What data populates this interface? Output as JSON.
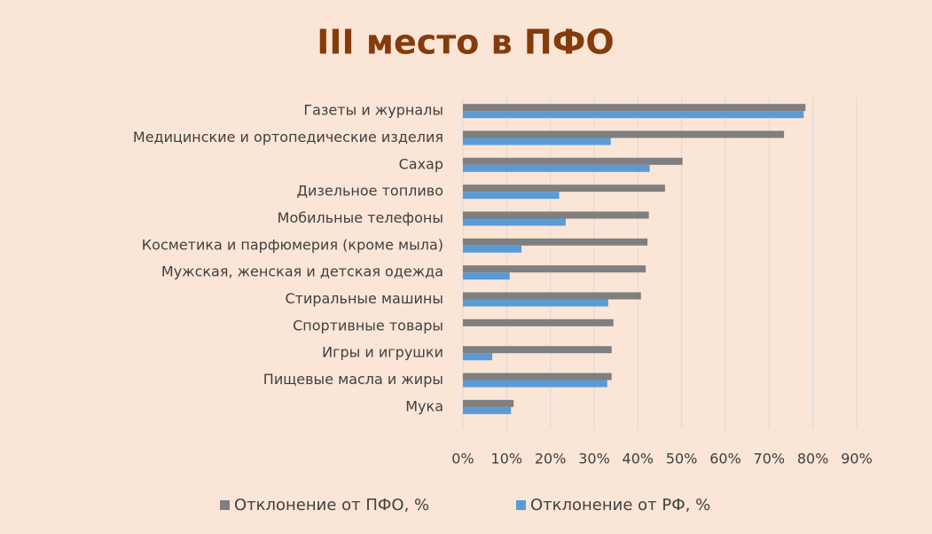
{
  "chart_data": {
    "type": "bar",
    "orientation": "horizontal",
    "title": "III место в ПФО",
    "categories": [
      "Газеты и журналы",
      "Медицинские и ортопедические изделия",
      "Сахар",
      "Дизельное топливо",
      "Мобильные телефоны",
      "Косметика и парфюмерия (кроме мыла)",
      "Мужская, женская и детская одежда",
      "Стиральные машины",
      "Спортивные товары",
      "Игры и игрушки",
      "Пищевые масла и жиры",
      "Мука"
    ],
    "series": [
      {
        "name": "Отклонение от ПФО, %",
        "color": "#7f7f7f",
        "values": [
          78.3,
          73.4,
          50.2,
          46.2,
          42.5,
          42.2,
          41.8,
          40.7,
          34.4,
          34,
          34,
          11.6
        ]
      },
      {
        "name": "Отклонение от РФ, %",
        "color": "#5b9bd5",
        "values": [
          77.9,
          33.8,
          42.7,
          22,
          23.5,
          13.4,
          10.7,
          33.2,
          null,
          6.7,
          33,
          11
        ]
      }
    ],
    "xlim": [
      0,
      90
    ],
    "xticks": [
      {
        "value": 0,
        "label": "0%"
      },
      {
        "value": 10,
        "label": "10%"
      },
      {
        "value": 20,
        "label": "20%"
      },
      {
        "value": 30,
        "label": "30%"
      },
      {
        "value": 40,
        "label": "40%"
      },
      {
        "value": 50,
        "label": "50%"
      },
      {
        "value": 60,
        "label": "60%"
      },
      {
        "value": 70,
        "label": "70%"
      },
      {
        "value": 80,
        "label": "80%"
      },
      {
        "value": 90,
        "label": "90%"
      }
    ],
    "grid": true,
    "legend": "bottom"
  }
}
